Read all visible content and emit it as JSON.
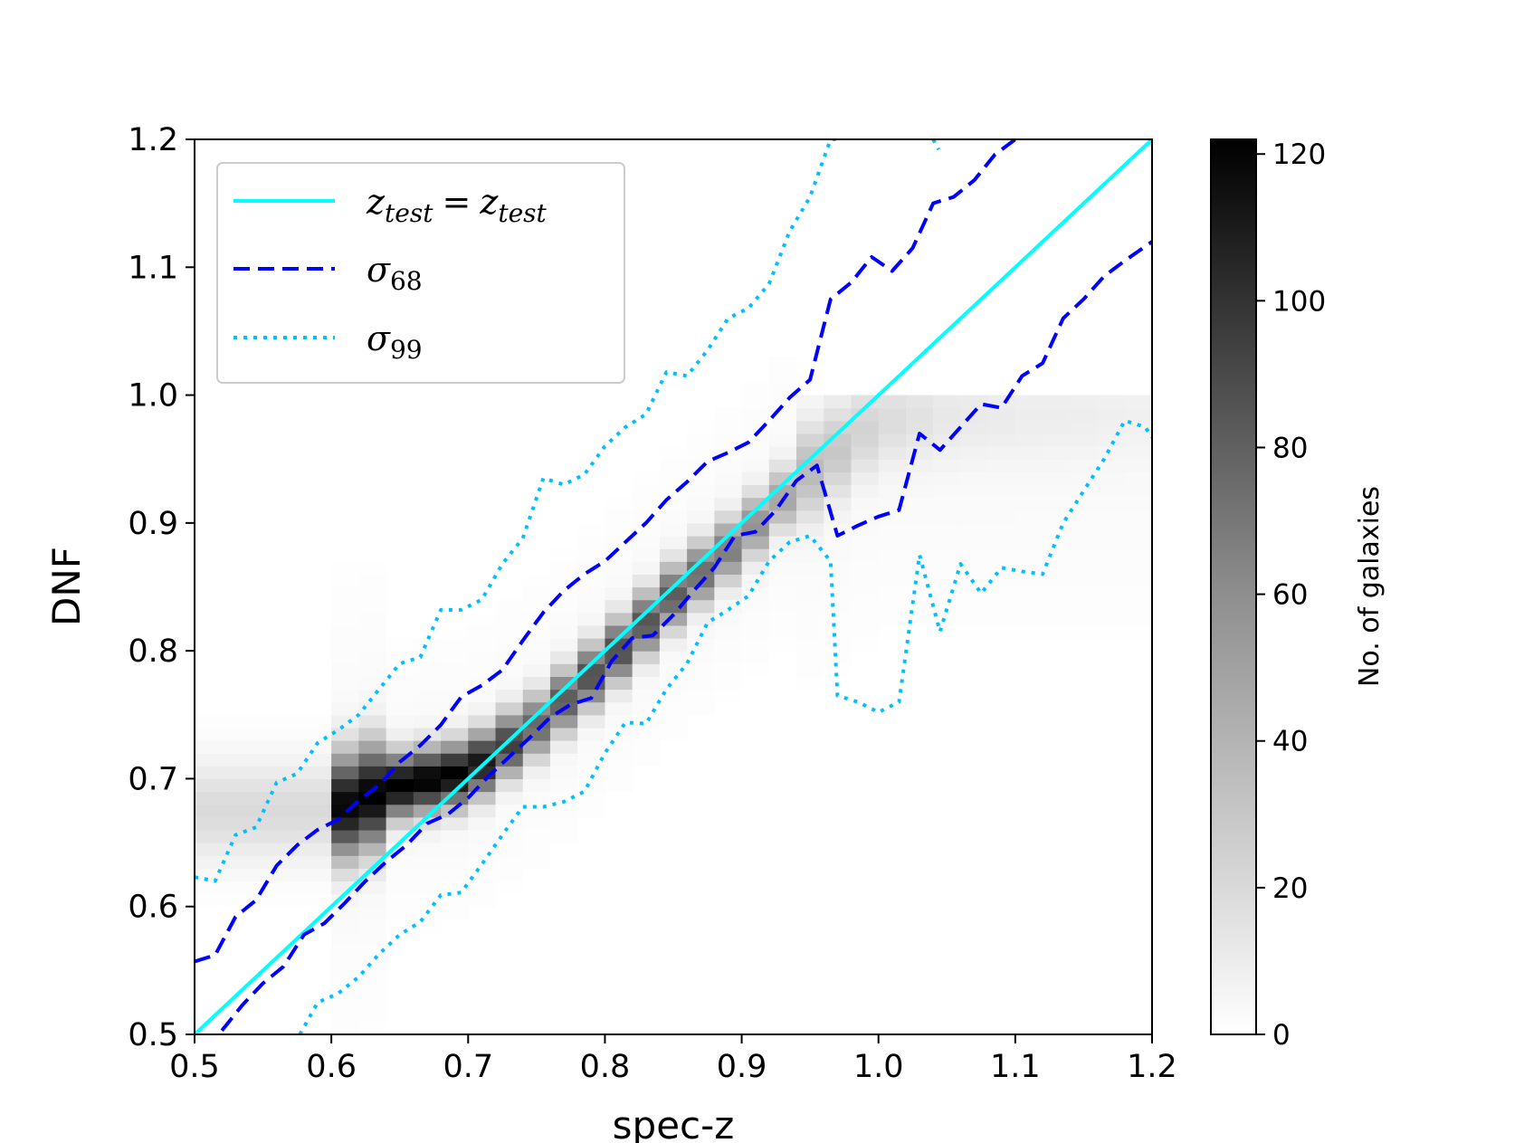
{
  "chart_data": {
    "type": "heatmap",
    "title": "",
    "xlabel": "spec-z",
    "ylabel": "DNF",
    "xlim": [
      0.5,
      1.2
    ],
    "ylim": [
      0.5,
      1.2
    ],
    "xticks": [
      "0.5",
      "0.6",
      "0.7",
      "0.8",
      "0.9",
      "1.0",
      "1.1",
      "1.2"
    ],
    "yticks": [
      "0.5",
      "0.6",
      "0.7",
      "0.8",
      "0.9",
      "1.0",
      "1.1",
      "1.2"
    ],
    "colorbar": {
      "label": "No. of galaxies",
      "range": [
        0,
        122
      ],
      "ticks": [
        "0",
        "20",
        "40",
        "60",
        "80",
        "100",
        "120"
      ],
      "colormap": "Greys"
    },
    "legend_position": "top-left",
    "series": [
      {
        "name": "z_test = z_test",
        "legend_main": "z",
        "legend_sub": "test",
        "legend_eq": "=",
        "style": "solid",
        "color": "#00ffff",
        "x": [
          0.5,
          1.2
        ],
        "y": [
          0.5,
          1.2
        ]
      },
      {
        "name": "σ68 upper",
        "legend_main": "σ",
        "legend_sub": "68",
        "style": "dashed",
        "color": "#0000ff",
        "x": [
          0.5,
          0.515,
          0.53,
          0.545,
          0.56,
          0.575,
          0.59,
          0.605,
          0.62,
          0.635,
          0.65,
          0.665,
          0.68,
          0.695,
          0.71,
          0.725,
          0.74,
          0.755,
          0.77,
          0.785,
          0.8,
          0.815,
          0.83,
          0.845,
          0.86,
          0.875,
          0.89,
          0.905,
          0.92,
          0.935,
          0.95,
          0.965,
          0.98,
          0.995,
          1.01,
          1.025,
          1.04,
          1.055,
          1.07,
          1.085,
          1.1
        ],
        "y": [
          0.557,
          0.562,
          0.592,
          0.605,
          0.632,
          0.648,
          0.66,
          0.668,
          0.683,
          0.695,
          0.713,
          0.726,
          0.742,
          0.764,
          0.773,
          0.785,
          0.808,
          0.83,
          0.847,
          0.86,
          0.87,
          0.885,
          0.9,
          0.918,
          0.932,
          0.948,
          0.955,
          0.963,
          0.98,
          0.998,
          1.012,
          1.075,
          1.088,
          1.108,
          1.097,
          1.115,
          1.15,
          1.155,
          1.168,
          1.188,
          1.2
        ]
      },
      {
        "name": "σ68 lower",
        "legend_main": "σ",
        "legend_sub": "68",
        "style": "dashed",
        "color": "#0000ff",
        "x": [
          0.52,
          0.535,
          0.55,
          0.565,
          0.58,
          0.595,
          0.61,
          0.625,
          0.64,
          0.655,
          0.67,
          0.685,
          0.7,
          0.715,
          0.73,
          0.745,
          0.76,
          0.775,
          0.79,
          0.805,
          0.82,
          0.835,
          0.85,
          0.865,
          0.88,
          0.895,
          0.91,
          0.925,
          0.94,
          0.955,
          0.97,
          0.985,
          1.0,
          1.015,
          1.03,
          1.045,
          1.06,
          1.075,
          1.09,
          1.105,
          1.12,
          1.135,
          1.15,
          1.165,
          1.18,
          1.2
        ],
        "y": [
          0.503,
          0.523,
          0.54,
          0.553,
          0.578,
          0.587,
          0.603,
          0.62,
          0.635,
          0.648,
          0.665,
          0.672,
          0.685,
          0.702,
          0.717,
          0.732,
          0.748,
          0.758,
          0.763,
          0.792,
          0.81,
          0.812,
          0.828,
          0.847,
          0.865,
          0.89,
          0.893,
          0.91,
          0.933,
          0.945,
          0.89,
          0.898,
          0.905,
          0.91,
          0.97,
          0.957,
          0.975,
          0.993,
          0.99,
          1.015,
          1.025,
          1.06,
          1.075,
          1.093,
          1.105,
          1.12
        ]
      },
      {
        "name": "σ99 upper",
        "legend_main": "σ",
        "legend_sub": "99",
        "style": "dotted",
        "color": "#00bfff",
        "x": [
          0.5,
          0.515,
          0.53,
          0.545,
          0.56,
          0.575,
          0.59,
          0.605,
          0.62,
          0.635,
          0.65,
          0.665,
          0.68,
          0.695,
          0.71,
          0.725,
          0.74,
          0.755,
          0.77,
          0.785,
          0.8,
          0.815,
          0.83,
          0.845,
          0.86,
          0.875,
          0.89,
          0.905,
          0.92,
          0.935,
          0.95,
          0.965,
          0.972
        ],
        "y": [
          0.623,
          0.62,
          0.656,
          0.662,
          0.697,
          0.704,
          0.728,
          0.738,
          0.75,
          0.77,
          0.79,
          0.795,
          0.832,
          0.832,
          0.84,
          0.868,
          0.888,
          0.935,
          0.93,
          0.938,
          0.96,
          0.975,
          0.985,
          1.018,
          1.015,
          1.035,
          1.06,
          1.068,
          1.087,
          1.128,
          1.155,
          1.2,
          1.2
        ]
      },
      {
        "name": "σ99 upper (far)",
        "legend_main": "σ",
        "legend_sub": "99",
        "style": "dotted",
        "color": "#00bfff",
        "x": [
          1.04,
          1.044
        ],
        "y": [
          1.2,
          1.192
        ]
      },
      {
        "name": "σ99 lower",
        "legend_main": "σ",
        "legend_sub": "99",
        "style": "dotted",
        "color": "#00bfff",
        "x": [
          0.577,
          0.59,
          0.605,
          0.62,
          0.635,
          0.65,
          0.665,
          0.68,
          0.695,
          0.71,
          0.725,
          0.74,
          0.755,
          0.77,
          0.785,
          0.8,
          0.815,
          0.83,
          0.845,
          0.86,
          0.875,
          0.89,
          0.905,
          0.92,
          0.935,
          0.95,
          0.965,
          0.97,
          0.985,
          1.0,
          1.015,
          1.03,
          1.045,
          1.06,
          1.075,
          1.09,
          1.105,
          1.12,
          1.135,
          1.15,
          1.165,
          1.18,
          1.195,
          1.2
        ],
        "y": [
          0.5,
          0.525,
          0.532,
          0.545,
          0.563,
          0.578,
          0.588,
          0.609,
          0.611,
          0.633,
          0.656,
          0.678,
          0.678,
          0.682,
          0.69,
          0.72,
          0.744,
          0.743,
          0.77,
          0.79,
          0.822,
          0.832,
          0.843,
          0.87,
          0.885,
          0.89,
          0.87,
          0.765,
          0.76,
          0.752,
          0.76,
          0.875,
          0.815,
          0.868,
          0.845,
          0.865,
          0.862,
          0.86,
          0.9,
          0.925,
          0.95,
          0.98,
          0.975,
          0.967
        ]
      }
    ],
    "density": {
      "description": "2D histogram of galaxy counts in spec-z vs DNF",
      "ridge_x": [
        0.6,
        0.65,
        0.7,
        0.75,
        0.8,
        0.85,
        0.9,
        0.95,
        1.0,
        1.05,
        1.1,
        1.15,
        1.2
      ],
      "ridge_y": [
        0.675,
        0.695,
        0.705,
        0.742,
        0.79,
        0.843,
        0.888,
        0.94,
        0.98,
        0.983,
        0.985,
        0.985,
        0.985
      ],
      "ridge_peak": [
        115,
        122,
        118,
        70,
        85,
        75,
        55,
        30,
        15,
        8,
        6,
        5,
        4
      ]
    }
  }
}
